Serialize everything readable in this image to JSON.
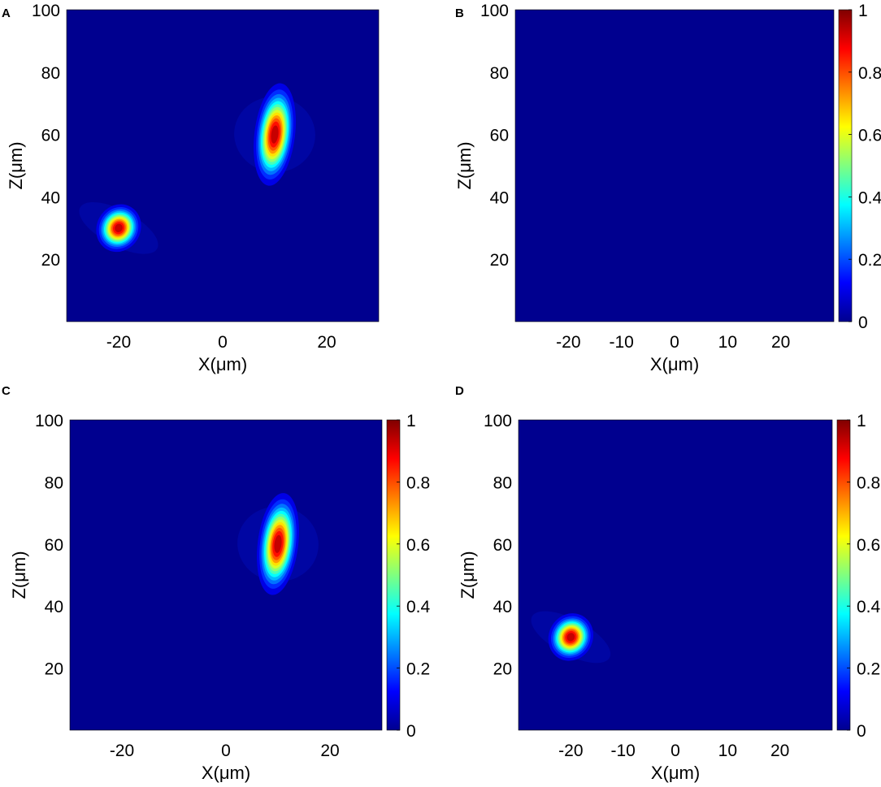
{
  "chart_data": [
    {
      "panel_label": "A",
      "type": "heatmap",
      "colormap": "jet",
      "xlabel": "X(μm)",
      "ylabel": "Z(μm)",
      "xlim": [
        -30,
        30
      ],
      "ylim": [
        0,
        100
      ],
      "x_ticks": [
        -20,
        0,
        20
      ],
      "y_ticks": [
        20,
        40,
        60,
        80,
        100
      ],
      "colorbar": null,
      "foci": [
        {
          "x": 10,
          "z": 60,
          "peak": 1.0,
          "sigma_x": 1.3,
          "sigma_z": 5.5,
          "tilt_deg": 7
        },
        {
          "x": -20,
          "z": 30,
          "peak": 1.0,
          "sigma_x": 1.4,
          "sigma_z": 2.6,
          "tilt_deg": 28
        }
      ]
    },
    {
      "panel_label": "B",
      "type": "heatmap",
      "colormap": "jet",
      "xlabel": "X(μm)",
      "ylabel": "Z(μm)",
      "xlim": [
        -30,
        30
      ],
      "ylim": [
        0,
        100
      ],
      "x_ticks": [
        -20,
        -10,
        0,
        10,
        20
      ],
      "y_ticks": [
        20,
        40,
        60,
        80,
        100
      ],
      "colorbar": {
        "min": 0,
        "max": 1,
        "ticks": [
          "0",
          "0.2",
          "0.4",
          "0.6",
          "0.8",
          "1"
        ]
      },
      "foci": []
    },
    {
      "panel_label": "C",
      "type": "heatmap",
      "colormap": "jet",
      "xlabel": "X(μm)",
      "ylabel": "Z(μm)",
      "xlim": [
        -30,
        30
      ],
      "ylim": [
        0,
        100
      ],
      "x_ticks": [
        -20,
        0,
        20
      ],
      "y_ticks": [
        20,
        40,
        60,
        80,
        100
      ],
      "colorbar": {
        "min": 0,
        "max": 1,
        "ticks": [
          "0",
          "0.2",
          "0.4",
          "0.6",
          "0.8",
          "1"
        ]
      },
      "foci": [
        {
          "x": 10,
          "z": 60,
          "peak": 1.0,
          "sigma_x": 1.3,
          "sigma_z": 5.5,
          "tilt_deg": 7
        }
      ]
    },
    {
      "panel_label": "D",
      "type": "heatmap",
      "colormap": "jet",
      "xlabel": "X(μm)",
      "ylabel": "Z(μm)",
      "xlim": [
        -30,
        30
      ],
      "ylim": [
        0,
        100
      ],
      "x_ticks": [
        -20,
        -10,
        0,
        10,
        20
      ],
      "y_ticks": [
        20,
        40,
        60,
        80,
        100
      ],
      "colorbar": {
        "min": 0,
        "max": 1,
        "ticks": [
          "0",
          "0.2",
          "0.4",
          "0.6",
          "0.8",
          "1"
        ]
      },
      "foci": [
        {
          "x": -20,
          "z": 30,
          "peak": 1.0,
          "sigma_x": 1.4,
          "sigma_z": 2.6,
          "tilt_deg": 28
        }
      ]
    }
  ]
}
